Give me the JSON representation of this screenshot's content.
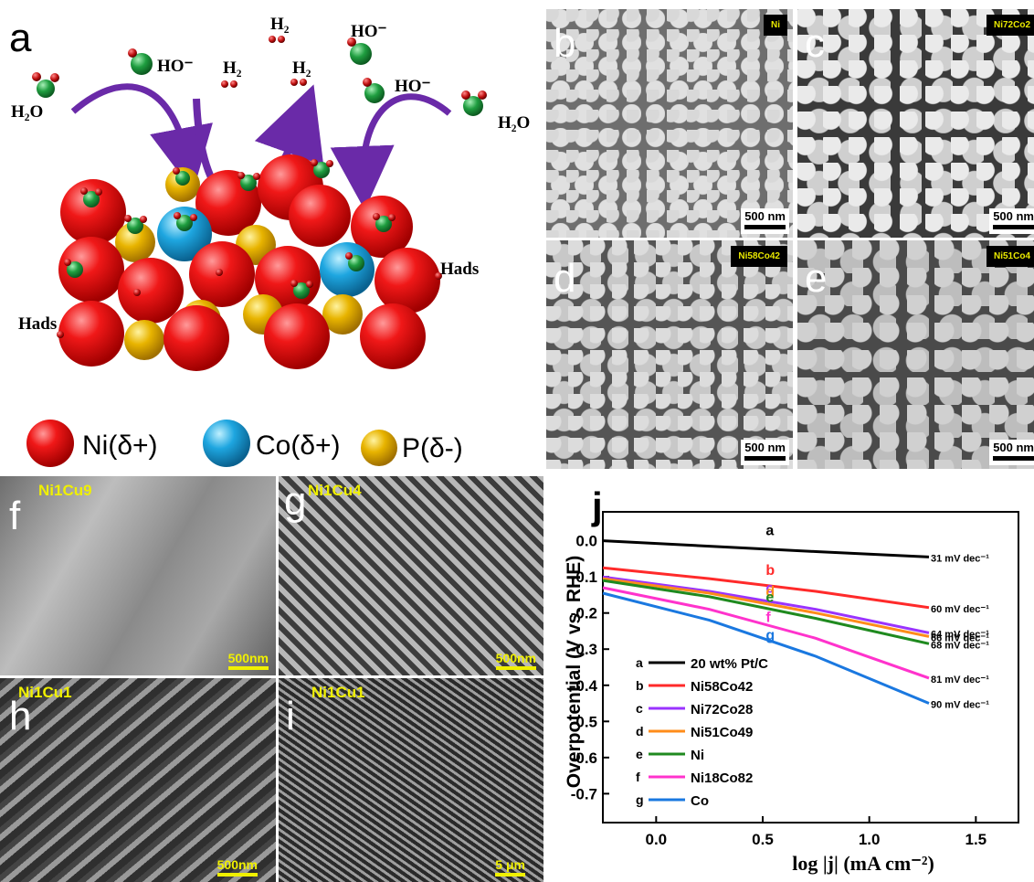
{
  "panel_a": {
    "letter": "a",
    "labels": {
      "h2o_left": "H₂O",
      "ho_1": "HO⁻",
      "h2_1": "H₂",
      "h2_top": "H₂",
      "h2_mid": "H₂",
      "ho_top": "HO⁻",
      "ho_right": "HO⁻",
      "h2o_right": "H₂O",
      "hads_right": "Hads",
      "hads_left": "Hads"
    },
    "legend": [
      {
        "label": "Ni(δ+)",
        "color": "#e01010"
      },
      {
        "label": "Co(δ+)",
        "color": "#1ea6e0"
      },
      {
        "label": "P(δ-)",
        "color": "#e8b400"
      }
    ],
    "colors": {
      "ni": "#e01010",
      "co": "#1ea6e0",
      "p": "#e8b400",
      "arrow": "#6a2aa8",
      "o": "#1f9e40"
    }
  },
  "sem_top": [
    {
      "letter": "b",
      "tag": "Ni",
      "scale": "500 nm"
    },
    {
      "letter": "c",
      "tag": "Ni72Co2",
      "scale": "500 nm"
    },
    {
      "letter": "d",
      "tag": "Ni58Co42",
      "scale": "500 nm"
    },
    {
      "letter": "e",
      "tag": "Ni51Co4",
      "scale": "500 nm"
    }
  ],
  "sem_bottom": [
    {
      "letter": "f",
      "tag": "Ni1Cu9",
      "scale": "500nm"
    },
    {
      "letter": "g",
      "tag": "Ni1Cu4",
      "scale": "500nm"
    },
    {
      "letter": "h",
      "tag": "Ni1Cu1",
      "scale": "500nm"
    },
    {
      "letter": "i",
      "tag": "Ni1Cu1",
      "scale": "5 μm"
    }
  ],
  "chart_data": {
    "type": "line",
    "panel_letter": "j",
    "xlabel": "log |j| (mA cm⁻²)",
    "ylabel": "Overpotential (V vs. RHE)",
    "xlim": [
      -0.25,
      1.7
    ],
    "ylim": [
      -0.78,
      0.08
    ],
    "xticks": [
      "0.0",
      "0.5",
      "1.0",
      "1.5"
    ],
    "yticks": [
      "0.0",
      "-0.1",
      "-0.2",
      "-0.3",
      "-0.4",
      "-0.5",
      "-0.6",
      "-0.7"
    ],
    "series": [
      {
        "id": "a",
        "name": "20 wt% Pt/C",
        "color": "#000000",
        "x": [
          -0.25,
          0.25,
          0.75,
          1.28
        ],
        "y": [
          0.0,
          -0.015,
          -0.03,
          -0.045
        ],
        "slope": "31 mV dec⁻¹"
      },
      {
        "id": "b",
        "name": "Ni58Co42",
        "color": "#ff2a2a",
        "x": [
          -0.25,
          0.25,
          0.75,
          1.28
        ],
        "y": [
          -0.075,
          -0.105,
          -0.14,
          -0.185
        ],
        "slope": "60 mV dec⁻¹"
      },
      {
        "id": "c",
        "name": "Ni72Co28",
        "color": "#9a33ff",
        "x": [
          -0.25,
          0.25,
          0.75,
          1.28
        ],
        "y": [
          -0.1,
          -0.14,
          -0.19,
          -0.255
        ],
        "slope": "64 mV dec⁻¹"
      },
      {
        "id": "d",
        "name": "Ni51Co49",
        "color": "#ff8c1a",
        "x": [
          -0.25,
          0.25,
          0.75,
          1.28
        ],
        "y": [
          -0.105,
          -0.145,
          -0.2,
          -0.265
        ],
        "slope": "66 mV dec⁻¹"
      },
      {
        "id": "e",
        "name": "Ni",
        "color": "#1f8a1f",
        "x": [
          -0.25,
          0.25,
          0.75,
          1.28
        ],
        "y": [
          -0.11,
          -0.155,
          -0.215,
          -0.285
        ],
        "slope": "68 mV dec⁻¹"
      },
      {
        "id": "f",
        "name": "Ni18Co82",
        "color": "#ff33cc",
        "x": [
          -0.25,
          0.25,
          0.75,
          1.28
        ],
        "y": [
          -0.13,
          -0.19,
          -0.27,
          -0.38
        ],
        "slope": "81 mV dec⁻¹"
      },
      {
        "id": "g",
        "name": "Co",
        "color": "#1a78e0",
        "x": [
          -0.25,
          0.25,
          0.75,
          1.28
        ],
        "y": [
          -0.145,
          -0.22,
          -0.32,
          -0.45
        ],
        "slope": "90 mV dec⁻¹"
      }
    ]
  }
}
